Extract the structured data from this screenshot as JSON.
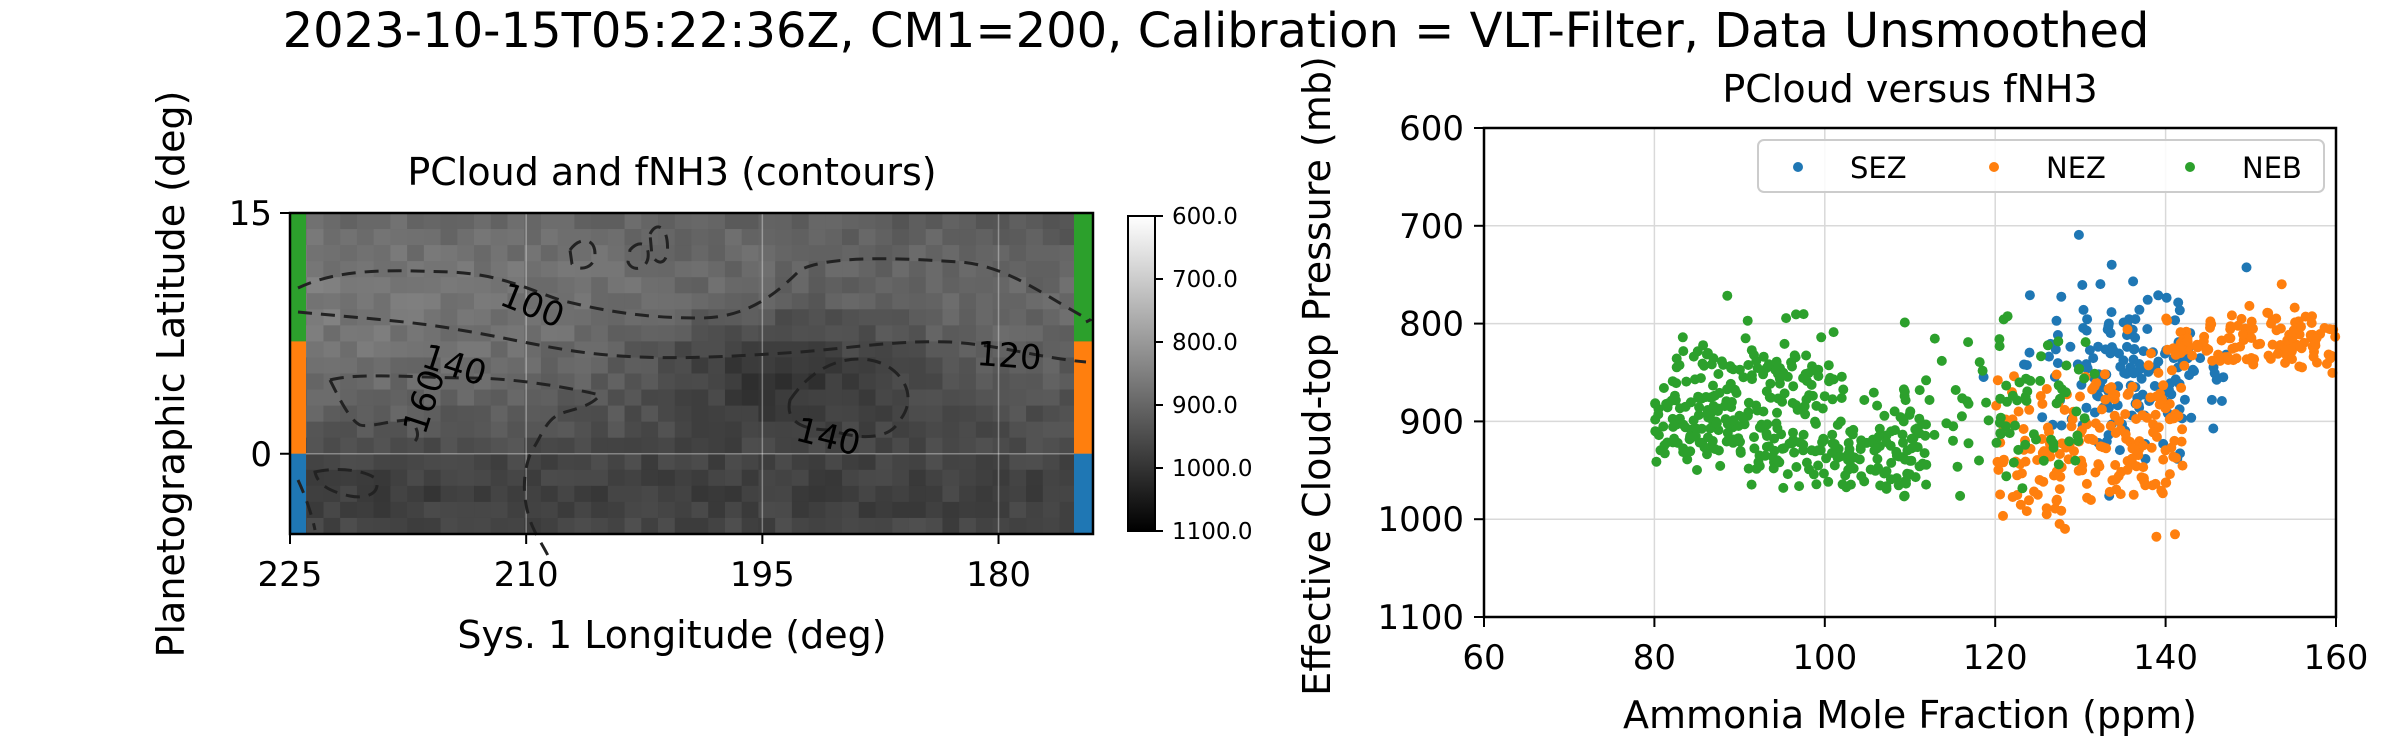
{
  "suptitle": "2023-10-15T05:22:36Z, CM1=200, Calibration = VLT-Filter, Data Unsmoothed",
  "chart_data": [
    {
      "type": "heatmap",
      "title": "PCloud and fNH3 (contours)",
      "xlabel": "Sys. 1 Longitude (deg)",
      "ylabel": "Planetographic Latitude (deg)",
      "xlim": [
        225,
        174
      ],
      "ylim": [
        -5,
        15
      ],
      "xticks": [
        "225",
        "210",
        "195",
        "180"
      ],
      "yticks": [
        "15",
        "0"
      ],
      "colorbar": {
        "ticks": [
          "600.0",
          "700.0",
          "800.0",
          "900.0",
          "1000.0",
          "1100.0"
        ],
        "range": [
          600,
          1100
        ],
        "cmap": "gray_r"
      },
      "contour_labels": [
        "100",
        "140",
        "160",
        "120",
        "140"
      ],
      "zone_bands": [
        {
          "name": "NEB",
          "lat_range": [
            7,
            15
          ],
          "color": "#2ca02c"
        },
        {
          "name": "NEZ",
          "lat_range": [
            0,
            7
          ],
          "color": "#ff7f0e"
        },
        {
          "name": "SEZ",
          "lat_range": [
            -5,
            0
          ],
          "color": "#1f77b4"
        }
      ]
    },
    {
      "type": "scatter",
      "title": "PCloud versus fNH3",
      "xlabel": "Ammonia Mole Fraction (ppm)",
      "ylabel": "Effective Cloud-top Pressure (mb)",
      "xlim": [
        60,
        160
      ],
      "ylim": [
        1100,
        600
      ],
      "xticks": [
        "60",
        "80",
        "100",
        "120",
        "140",
        "160"
      ],
      "yticks": [
        "600",
        "700",
        "800",
        "900",
        "1000",
        "1100"
      ],
      "grid": true,
      "legend_position": "top-right",
      "series": [
        {
          "name": "SEZ",
          "color": "#1f77b4",
          "cx": 136,
          "cy": 845,
          "sx": 6,
          "sy": 40,
          "n": 170
        },
        {
          "name": "NEZ",
          "color": "#ff7f0e",
          "cx": 138,
          "cy": 880,
          "sx": 10,
          "sy": 45,
          "n": 330
        },
        {
          "name": "NEB",
          "color": "#2ca02c",
          "cx": 98,
          "cy": 895,
          "sx": 12,
          "sy": 35,
          "n": 460
        }
      ]
    }
  ]
}
